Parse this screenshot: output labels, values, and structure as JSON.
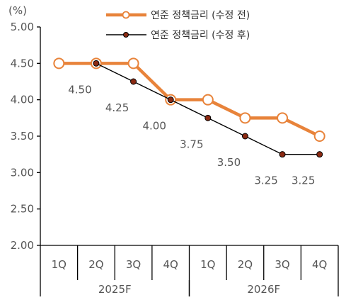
{
  "chart_data": {
    "type": "line",
    "unit_label": "(%)",
    "categories": [
      "1Q",
      "2Q",
      "3Q",
      "4Q",
      "1Q",
      "2Q",
      "3Q",
      "4Q"
    ],
    "groups": [
      {
        "label": "2025F",
        "span": 4
      },
      {
        "label": "2026F",
        "span": 4
      }
    ],
    "ylim": [
      2.0,
      5.0
    ],
    "yticks": [
      "2.00",
      "2.50",
      "3.00",
      "3.50",
      "4.00",
      "4.50",
      "5.00"
    ],
    "grid": false,
    "legend_position": "top-right",
    "series": [
      {
        "name": "연준 정책금리 (수정 전)",
        "color": "#E8833A",
        "values": [
          4.5,
          4.5,
          4.5,
          4.0,
          4.0,
          3.75,
          3.75,
          3.5
        ]
      },
      {
        "name": "연준 정책금리 (수정 후)",
        "color": "#000000",
        "marker_color": "#8B2A12",
        "values": [
          null,
          4.5,
          4.25,
          4.0,
          3.75,
          3.5,
          3.25,
          3.25
        ]
      }
    ],
    "data_labels": [
      "4.50",
      "4.25",
      "4.00",
      "3.75",
      "3.50",
      "3.25",
      "3.25"
    ]
  }
}
